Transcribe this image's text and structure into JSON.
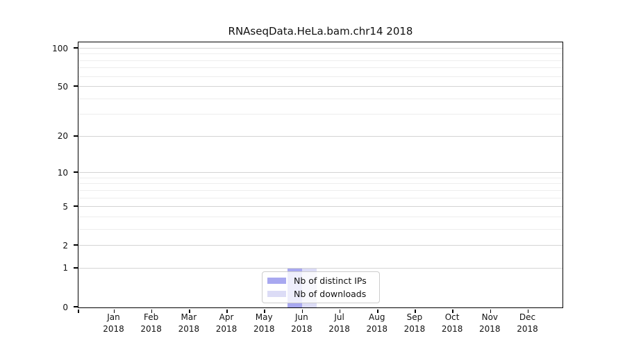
{
  "title": "RNAseqData.HeLa.bam.chr14 2018",
  "chart_data": {
    "type": "bar",
    "title": "RNAseqData.HeLa.bam.chr14 2018",
    "categories": [
      "Jan 2018",
      "Feb 2018",
      "Mar 2018",
      "Apr 2018",
      "May 2018",
      "Jun 2018",
      "Jul 2018",
      "Aug 2018",
      "Sep 2018",
      "Oct 2018",
      "Nov 2018",
      "Dec 2018"
    ],
    "series": [
      {
        "name": "Nb of distinct IPs",
        "color": "#a8a8f0",
        "values": [
          0,
          0,
          0,
          0,
          0,
          1,
          0,
          0,
          0,
          0,
          0,
          0
        ]
      },
      {
        "name": "Nb of downloads",
        "color": "#dcdcf6",
        "values": [
          0,
          0,
          0,
          0,
          0,
          1,
          0,
          0,
          0,
          0,
          0,
          0
        ]
      }
    ],
    "yscale": "log1p",
    "ylim": [
      0,
      100
    ],
    "yticks": [
      0,
      1,
      2,
      5,
      10,
      20,
      50,
      100
    ],
    "y_minor_gridlines": [
      3,
      4,
      6,
      7,
      8,
      9,
      30,
      40,
      60,
      70,
      80,
      90
    ],
    "xlabel": "",
    "ylabel": "",
    "grid": true,
    "legend_position": "inside-bottom-center",
    "colors": {
      "major_grid": "#d4d4d4",
      "minor_grid": "#ededed",
      "axis": "#000000",
      "background": "#ffffff"
    }
  }
}
